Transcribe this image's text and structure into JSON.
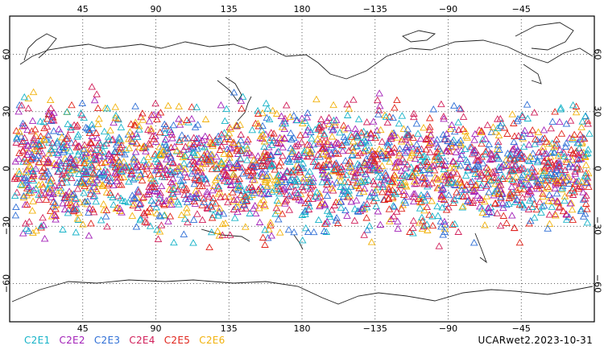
{
  "map": {
    "lon_ticks": [
      "45",
      "90",
      "135",
      "180",
      "−135",
      "−90",
      "−45"
    ],
    "lat_ticks": [
      "60",
      "30",
      "0",
      "−30",
      "−60"
    ],
    "lat_range": [
      -80,
      80
    ],
    "center_lon": 180,
    "marker": "open triangle",
    "observation_band_lat": [
      -45,
      45
    ],
    "grid": "dotted every 45° lon / 30° lat"
  },
  "legend": [
    {
      "label": "C2E1",
      "color": "#17b3c8"
    },
    {
      "label": "C2E2",
      "color": "#a321b8"
    },
    {
      "label": "C2E3",
      "color": "#2f6fd6"
    },
    {
      "label": "C2E4",
      "color": "#d11f5a"
    },
    {
      "label": "C2E5",
      "color": "#e0241b"
    },
    {
      "label": "C2E6",
      "color": "#f2b20c"
    }
  ],
  "footer": {
    "label": "UCARwet2.2023-10-31"
  }
}
